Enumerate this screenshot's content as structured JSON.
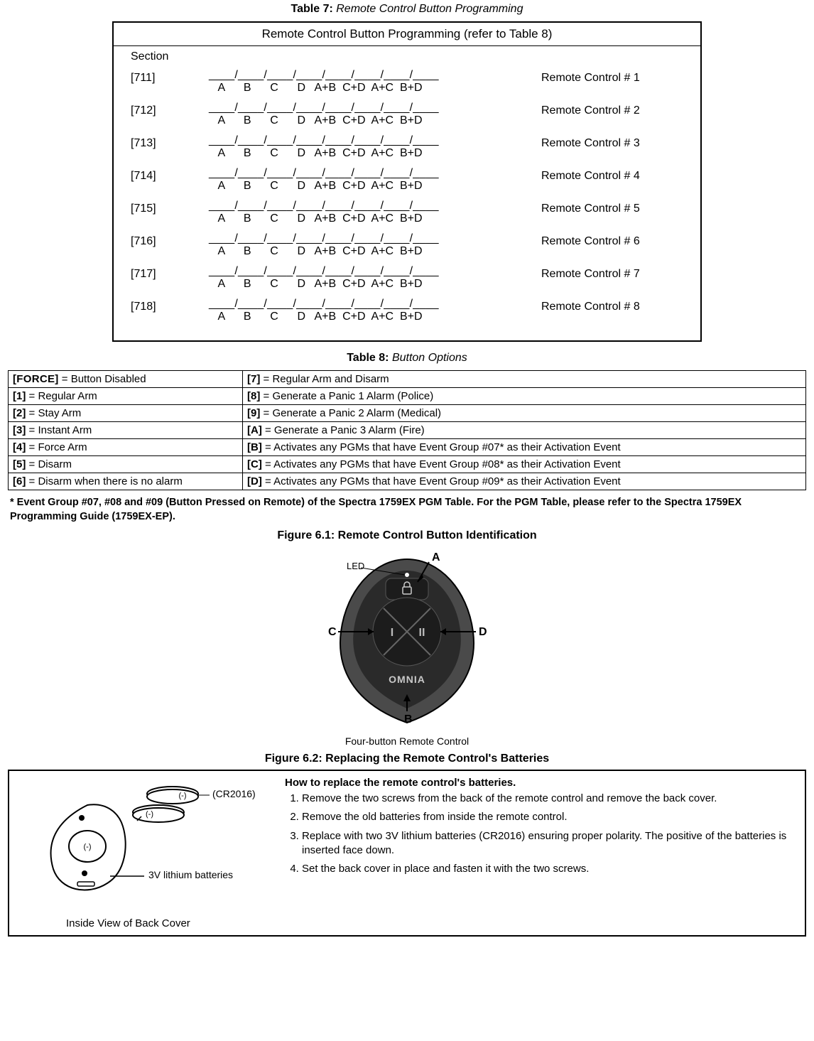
{
  "table7": {
    "caption_num": "Table 7:",
    "caption_title": "Remote Control Button Programming",
    "title": "Remote Control Button Programming (refer to Table 8)",
    "section_header": "Section",
    "slot_line": "____/____/____/____/____/____/____/____",
    "label_line": "   A      B      C      D   A+B  C+D  A+C  B+D",
    "rows": [
      {
        "section": "[711]",
        "remote": "Remote Control # 1"
      },
      {
        "section": "[712]",
        "remote": "Remote Control # 2"
      },
      {
        "section": "[713]",
        "remote": "Remote Control # 3"
      },
      {
        "section": "[714]",
        "remote": "Remote Control # 4"
      },
      {
        "section": "[715]",
        "remote": "Remote Control # 5"
      },
      {
        "section": "[716]",
        "remote": "Remote Control # 6"
      },
      {
        "section": "[717]",
        "remote": "Remote Control # 7"
      },
      {
        "section": "[718]",
        "remote": "Remote Control # 8"
      }
    ]
  },
  "table8": {
    "caption_num": "Table 8:",
    "caption_title": "Button Options",
    "rows": [
      {
        "c1k": "[FORCE]",
        "c1v": " = Button Disabled",
        "c2k": "[7]",
        "c2v": " = Regular Arm and Disarm",
        "sc": true
      },
      {
        "c1k": "[1]",
        "c1v": " = Regular Arm",
        "c2k": "[8]",
        "c2v": " = Generate a Panic 1 Alarm (Police)"
      },
      {
        "c1k": "[2]",
        "c1v": " = Stay Arm",
        "c2k": "[9]",
        "c2v": " = Generate a Panic 2 Alarm (Medical)"
      },
      {
        "c1k": "[3]",
        "c1v": " = Instant Arm",
        "c2k": "[A]",
        "c2v": " = Generate a Panic 3 Alarm (Fire)"
      },
      {
        "c1k": "[4]",
        "c1v": " = Force Arm",
        "c2k": "[B]",
        "c2v": " = Activates any PGMs that have Event Group #07* as their Activation Event"
      },
      {
        "c1k": "[5]",
        "c1v": " = Disarm",
        "c2k": "[C]",
        "c2v": " = Activates any PGMs that have Event Group #08* as their Activation Event"
      },
      {
        "c1k": "[6]",
        "c1v": " = Disarm when there is no alarm",
        "c2k": "[D]",
        "c2v": " = Activates any PGMs that have Event Group #09* as their Activation Event"
      }
    ]
  },
  "footnote": "* Event Group #07, #08 and #09 (Button Pressed on Remote) of the Spectra 1759EX PGM Table. For the PGM Table, please refer to the Spectra 1759EX Programming Guide (1759EX-EP).",
  "fig61": {
    "caption": "Figure 6.1:  Remote Control Button Identification",
    "led_label": "LED",
    "a": "A",
    "b": "B",
    "c": "C",
    "d": "D",
    "brand": "OMNIA",
    "subcaption": "Four-button Remote Control",
    "btn_i": "I",
    "btn_ii": "II"
  },
  "fig62": {
    "caption": "Figure 6.2:  Replacing the Remote Control's Batteries",
    "cr_label": "(CR2016)",
    "batt_label": "3V lithium batteries",
    "bottom_caption": "Inside View of Back Cover",
    "howto_title": "How to replace the remote control's batteries.",
    "steps": [
      "Remove the two screws from the back of the remote control and remove the back cover.",
      "Remove the old batteries from inside the remote control.",
      "Replace with two 3V lithium batteries (CR2016) ensuring proper polarity. The positive of the batteries is inserted face down.",
      "Set the back cover in place and fasten it with the two screws."
    ]
  },
  "colors": {
    "remote_body": "#4a4a4a",
    "remote_body_dark": "#2a2a2a",
    "remote_btn": "#1c1c1c",
    "remote_highlight": "#d0d0d0"
  }
}
